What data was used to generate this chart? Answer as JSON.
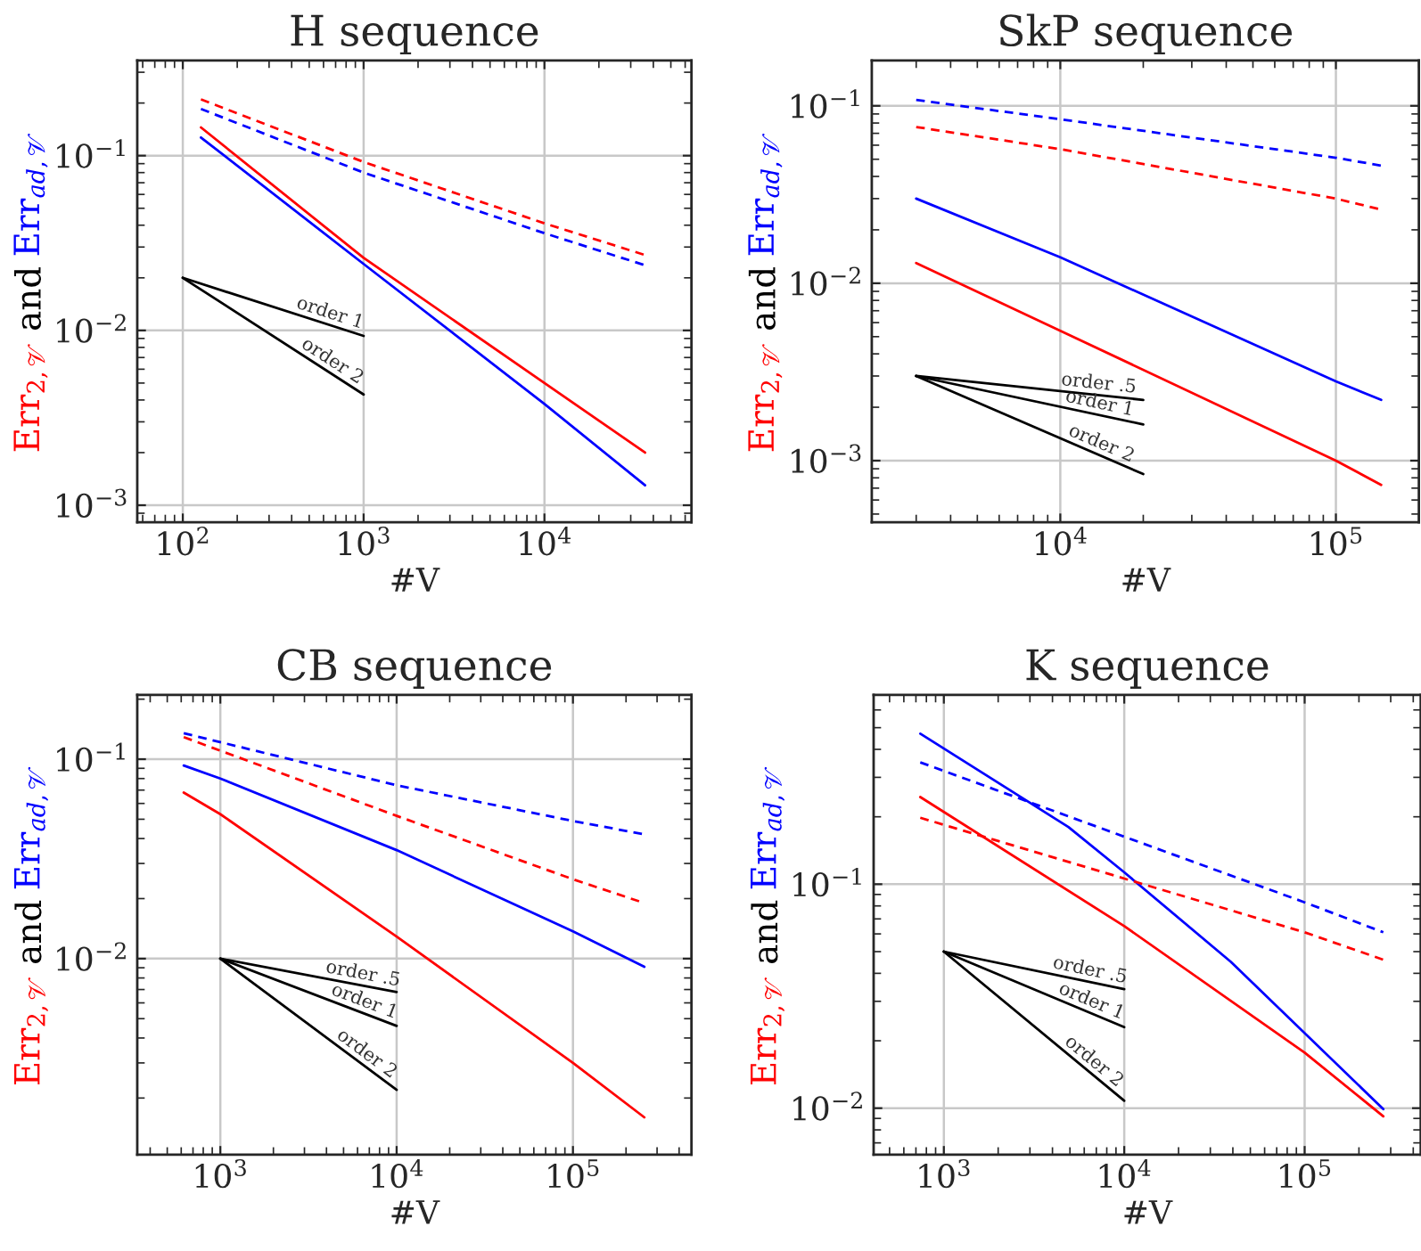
{
  "chart_data": [
    {
      "type": "line",
      "title": "H sequence",
      "xlabel": "#V",
      "ylabel": "Err$_{2,𝒱}$ and Err$_{ad,𝒱}$",
      "log": "xy",
      "grid": true,
      "xlim": [
        56,
        65000
      ],
      "ylim": [
        0.0008,
        0.35
      ],
      "xticks": [
        {
          "value": 100,
          "label": "10$^{2}$"
        },
        {
          "value": 1000,
          "label": "10$^{3}$"
        },
        {
          "value": 10000,
          "label": "10$^{4}$"
        }
      ],
      "yticks": [
        {
          "value": 0.001,
          "label": "10$^{−3}$"
        },
        {
          "value": 0.01,
          "label": "10$^{−2}$"
        },
        {
          "value": 0.1,
          "label": "10$^{−1}$"
        }
      ],
      "series": [
        {
          "color": "#ff0000",
          "line_style": "solid",
          "x": [
            126,
            1000,
            10000,
            36000
          ],
          "values": [
            0.145,
            0.026,
            0.005,
            0.002
          ]
        },
        {
          "color": "#0000ff",
          "line_style": "solid",
          "x": [
            126,
            1000,
            10000,
            36000
          ],
          "values": [
            0.127,
            0.024,
            0.0038,
            0.0013
          ]
        },
        {
          "color": "#ff0000",
          "line_style": "dashed",
          "x": [
            126,
            1000,
            10000,
            36000
          ],
          "values": [
            0.21,
            0.092,
            0.041,
            0.027
          ]
        },
        {
          "color": "#0000ff",
          "line_style": "dashed",
          "x": [
            126,
            1000,
            10000,
            36000
          ],
          "values": [
            0.185,
            0.08,
            0.036,
            0.0236
          ]
        },
        {
          "color": "#000000",
          "line_style": "solid",
          "x": [
            100,
            1000
          ],
          "values": [
            0.02,
            0.0093
          ]
        },
        {
          "color": "#000000",
          "line_style": "solid",
          "x": [
            100,
            1000
          ],
          "values": [
            0.02,
            0.0043
          ]
        }
      ],
      "annotations": [
        "order 1",
        "order 2"
      ]
    },
    {
      "type": "line",
      "title": "SkP sequence",
      "xlabel": "#V",
      "ylabel": "Err$_{2,𝒱}$ and Err$_{ad,𝒱}$",
      "log": "xy",
      "grid": true,
      "xlim": [
        2070,
        200000
      ],
      "ylim": [
        0.00045,
        0.18
      ],
      "xticks": [
        {
          "value": 10000,
          "label": "10$^{4}$"
        },
        {
          "value": 100000,
          "label": "10$^{5}$"
        }
      ],
      "yticks": [
        {
          "value": 0.001,
          "label": "10$^{−3}$"
        },
        {
          "value": 0.01,
          "label": "10$^{−2}$"
        },
        {
          "value": 0.1,
          "label": "10$^{−1}$"
        }
      ],
      "series": [
        {
          "color": "#ff0000",
          "line_style": "solid",
          "x": [
            3000,
            10000,
            100000,
            146000
          ],
          "values": [
            0.013,
            0.0054,
            0.001,
            0.00073
          ]
        },
        {
          "color": "#0000ff",
          "line_style": "solid",
          "x": [
            3000,
            10000,
            100000,
            146000
          ],
          "values": [
            0.03,
            0.014,
            0.0028,
            0.0022
          ]
        },
        {
          "color": "#ff0000",
          "line_style": "dashed",
          "x": [
            3000,
            10000,
            100000,
            146000
          ],
          "values": [
            0.076,
            0.057,
            0.03,
            0.026
          ]
        },
        {
          "color": "#0000ff",
          "line_style": "dashed",
          "x": [
            3000,
            10000,
            100000,
            146000
          ],
          "values": [
            0.108,
            0.084,
            0.051,
            0.046
          ]
        },
        {
          "color": "#000000",
          "line_style": "solid",
          "x": [
            3000,
            20000
          ],
          "values": [
            0.003,
            0.0022
          ]
        },
        {
          "color": "#000000",
          "line_style": "solid",
          "x": [
            3000,
            20000
          ],
          "values": [
            0.003,
            0.0016
          ]
        },
        {
          "color": "#000000",
          "line_style": "solid",
          "x": [
            3000,
            20000
          ],
          "values": [
            0.003,
            0.00084
          ]
        }
      ],
      "annotations": [
        "order .5",
        "order 1",
        "order 2"
      ]
    },
    {
      "type": "line",
      "title": "CB sequence",
      "xlabel": "#V",
      "ylabel": "Err$_{2,𝒱}$ and Err$_{ad,𝒱}$",
      "log": "xy",
      "grid": true,
      "xlim": [
        338,
        470000
      ],
      "ylim": [
        0.00104,
        0.21
      ],
      "xticks": [
        {
          "value": 1000,
          "label": "10$^{3}$"
        },
        {
          "value": 10000,
          "label": "10$^{4}$"
        },
        {
          "value": 100000,
          "label": "10$^{5}$"
        }
      ],
      "yticks": [
        {
          "value": 0.01,
          "label": "10$^{−2}$"
        },
        {
          "value": 0.1,
          "label": "10$^{−1}$"
        }
      ],
      "series": [
        {
          "color": "#ff0000",
          "line_style": "solid",
          "x": [
            620,
            1000,
            10000,
            100000,
            254000
          ],
          "values": [
            0.068,
            0.053,
            0.0129,
            0.003,
            0.0016
          ]
        },
        {
          "color": "#0000ff",
          "line_style": "solid",
          "x": [
            620,
            1000,
            10000,
            100000,
            254000
          ],
          "values": [
            0.093,
            0.08,
            0.035,
            0.0137,
            0.0091
          ]
        },
        {
          "color": "#ff0000",
          "line_style": "dashed",
          "x": [
            620,
            10000,
            100000,
            254000
          ],
          "values": [
            0.129,
            0.052,
            0.025,
            0.019
          ]
        },
        {
          "color": "#0000ff",
          "line_style": "dashed",
          "x": [
            620,
            10000,
            100000,
            254000
          ],
          "values": [
            0.135,
            0.074,
            0.049,
            0.042
          ]
        },
        {
          "color": "#000000",
          "line_style": "solid",
          "x": [
            1000,
            10000
          ],
          "values": [
            0.01,
            0.0068
          ]
        },
        {
          "color": "#000000",
          "line_style": "solid",
          "x": [
            1000,
            10000
          ],
          "values": [
            0.01,
            0.0046
          ]
        },
        {
          "color": "#000000",
          "line_style": "solid",
          "x": [
            1000,
            10000
          ],
          "values": [
            0.01,
            0.0022
          ]
        }
      ],
      "annotations": [
        "order .5",
        "order 1",
        "order 2"
      ]
    },
    {
      "type": "line",
      "title": "K sequence",
      "xlabel": "#V",
      "ylabel": "Err$_{2,𝒱}$ and Err$_{ad,𝒱}$",
      "log": "xy",
      "grid": true,
      "xlim": [
        408,
        440000
      ],
      "ylim": [
        0.0062,
        0.7
      ],
      "xticks": [
        {
          "value": 1000,
          "label": "10$^{3}$"
        },
        {
          "value": 10000,
          "label": "10$^{4}$"
        },
        {
          "value": 100000,
          "label": "10$^{5}$"
        }
      ],
      "yticks": [
        {
          "value": 0.01,
          "label": "10$^{−2}$"
        },
        {
          "value": 0.1,
          "label": "10$^{−1}$"
        }
      ],
      "series": [
        {
          "color": "#ff0000",
          "line_style": "solid",
          "x": [
            740,
            10000,
            100000,
            273000
          ],
          "values": [
            0.245,
            0.065,
            0.0177,
            0.0092
          ]
        },
        {
          "color": "#0000ff",
          "line_style": "solid",
          "x": [
            740,
            4900,
            10000,
            39000,
            273000
          ],
          "values": [
            0.47,
            0.18,
            0.113,
            0.045,
            0.0099
          ]
        },
        {
          "color": "#ff0000",
          "line_style": "dashed",
          "x": [
            740,
            10000,
            100000,
            273000
          ],
          "values": [
            0.198,
            0.106,
            0.061,
            0.046
          ]
        },
        {
          "color": "#0000ff",
          "line_style": "dashed",
          "x": [
            740,
            10000,
            100000,
            273000
          ],
          "values": [
            0.35,
            0.163,
            0.083,
            0.061
          ]
        },
        {
          "color": "#000000",
          "line_style": "solid",
          "x": [
            1000,
            10000
          ],
          "values": [
            0.05,
            0.034
          ]
        },
        {
          "color": "#000000",
          "line_style": "solid",
          "x": [
            1000,
            10000
          ],
          "values": [
            0.05,
            0.023
          ]
        },
        {
          "color": "#000000",
          "line_style": "solid",
          "x": [
            1000,
            10000
          ],
          "values": [
            0.05,
            0.0108
          ]
        }
      ],
      "annotations": [
        "order .5",
        "order 1",
        "order 2"
      ]
    }
  ]
}
